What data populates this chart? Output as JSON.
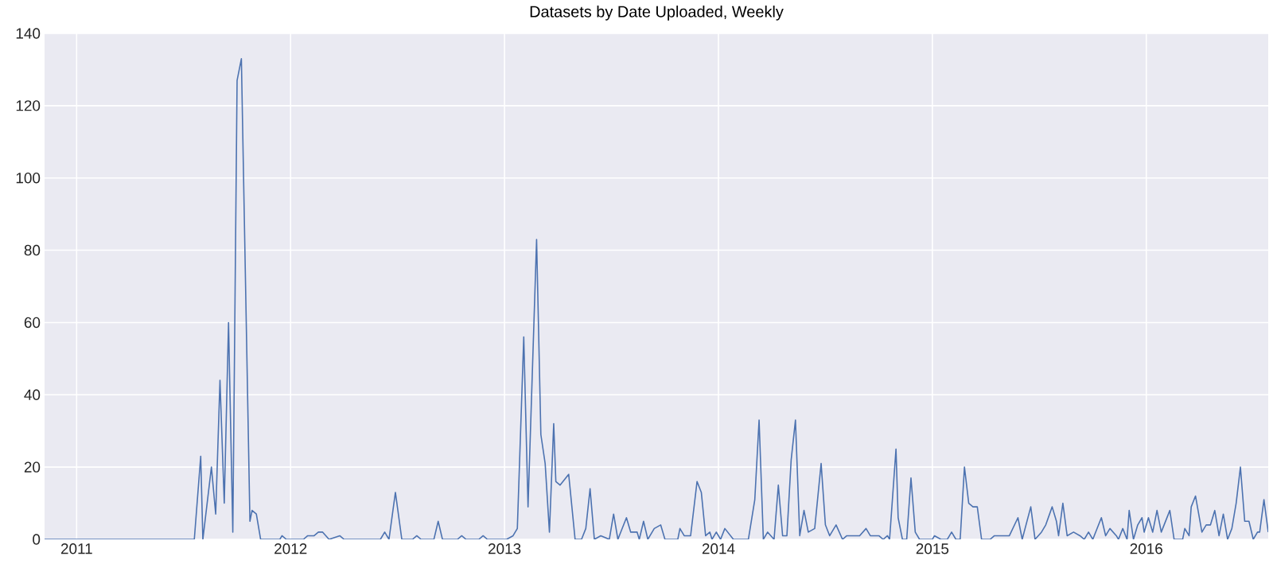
{
  "chart_data": {
    "type": "line",
    "title": "Datasets by Date Uploaded, Weekly",
    "color": "#4c72b0",
    "grid": true,
    "xlim": [
      2010.85,
      2016.57
    ],
    "ylim": [
      0,
      140
    ],
    "xticks": [
      2011,
      2012,
      2013,
      2014,
      2015,
      2016
    ],
    "yticks": [
      0,
      20,
      40,
      60,
      80,
      100,
      120,
      140
    ],
    "x": [
      2010.85,
      2011.55,
      2011.58,
      2011.59,
      2011.63,
      2011.65,
      2011.67,
      2011.69,
      2011.71,
      2011.73,
      2011.75,
      2011.77,
      2011.81,
      2011.82,
      2011.84,
      2011.86,
      2011.95,
      2011.96,
      2011.98,
      2012.06,
      2012.08,
      2012.11,
      2012.13,
      2012.15,
      2012.18,
      2012.23,
      2012.25,
      2012.42,
      2012.44,
      2012.46,
      2012.49,
      2012.52,
      2012.57,
      2012.59,
      2012.61,
      2012.67,
      2012.69,
      2012.71,
      2012.78,
      2012.8,
      2012.82,
      2012.88,
      2012.9,
      2012.92,
      2013.01,
      2013.04,
      2013.06,
      2013.09,
      2013.11,
      2013.15,
      2013.17,
      2013.19,
      2013.21,
      2013.23,
      2013.24,
      2013.26,
      2013.3,
      2013.33,
      2013.36,
      2013.38,
      2013.4,
      2013.42,
      2013.45,
      2013.49,
      2013.51,
      2013.53,
      2013.57,
      2013.59,
      2013.62,
      2013.63,
      2013.65,
      2013.67,
      2013.7,
      2013.73,
      2013.75,
      2013.81,
      2013.82,
      2013.84,
      2013.87,
      2013.9,
      2013.92,
      2013.94,
      2013.96,
      2013.97,
      2013.99,
      2014.01,
      2014.03,
      2014.07,
      2014.14,
      2014.17,
      2014.19,
      2014.21,
      2014.23,
      2014.26,
      2014.28,
      2014.3,
      2014.32,
      2014.34,
      2014.36,
      2014.38,
      2014.4,
      2014.42,
      2014.45,
      2014.48,
      2014.5,
      2014.52,
      2014.55,
      2014.58,
      2014.6,
      2014.66,
      2014.69,
      2014.71,
      2014.75,
      2014.77,
      2014.79,
      2014.8,
      2014.83,
      2014.84,
      2014.86,
      2014.88,
      2014.9,
      2014.92,
      2014.94,
      2015.0,
      2015.01,
      2015.04,
      2015.07,
      2015.09,
      2015.11,
      2015.13,
      2015.15,
      2015.17,
      2015.19,
      2015.21,
      2015.23,
      2015.27,
      2015.29,
      2015.36,
      2015.4,
      2015.42,
      2015.46,
      2015.48,
      2015.51,
      2015.53,
      2015.56,
      2015.58,
      2015.59,
      2015.61,
      2015.63,
      2015.66,
      2015.69,
      2015.71,
      2015.73,
      2015.75,
      2015.79,
      2015.81,
      2015.83,
      2015.86,
      2015.87,
      2015.89,
      2015.91,
      2015.92,
      2015.94,
      2015.96,
      2015.98,
      2015.99,
      2016.01,
      2016.03,
      2016.05,
      2016.07,
      2016.11,
      2016.13,
      2016.17,
      2016.18,
      2016.2,
      2016.21,
      2016.23,
      2016.26,
      2016.28,
      2016.3,
      2016.32,
      2016.34,
      2016.36,
      2016.38,
      2016.4,
      2016.42,
      2016.44,
      2016.46,
      2016.48,
      2016.5,
      2016.52,
      2016.53,
      2016.55,
      2016.57
    ],
    "values": [
      0,
      0,
      23,
      0,
      20,
      7,
      44,
      10,
      60,
      2,
      127,
      133,
      5,
      8,
      7,
      0,
      0,
      1,
      0,
      0,
      1,
      1,
      2,
      2,
      0,
      1,
      0,
      0,
      2,
      0,
      13,
      0,
      0,
      1,
      0,
      0,
      5,
      0,
      0,
      1,
      0,
      0,
      1,
      0,
      0,
      1,
      3,
      56,
      9,
      83,
      29,
      21,
      2,
      32,
      16,
      15,
      18,
      0,
      0,
      3,
      14,
      0,
      1,
      0,
      7,
      0,
      6,
      2,
      2,
      0,
      5,
      0,
      3,
      4,
      0,
      0,
      3,
      1,
      1,
      16,
      13,
      1,
      2,
      0,
      2,
      0,
      3,
      0,
      0,
      11,
      33,
      0,
      2,
      0,
      15,
      1,
      1,
      22,
      33,
      1,
      8,
      2,
      3,
      21,
      4,
      1,
      4,
      0,
      1,
      1,
      3,
      1,
      1,
      0,
      1,
      0,
      25,
      6,
      0,
      0,
      17,
      2,
      0,
      0,
      1,
      0,
      0,
      2,
      0,
      0,
      20,
      10,
      9,
      9,
      0,
      0,
      1,
      1,
      6,
      0,
      9,
      0,
      2,
      4,
      9,
      5,
      1,
      10,
      1,
      2,
      1,
      0,
      2,
      0,
      6,
      1,
      3,
      1,
      0,
      3,
      0,
      8,
      0,
      4,
      6,
      2,
      6,
      2,
      8,
      2,
      8,
      0,
      0,
      3,
      1,
      9,
      12,
      2,
      4,
      4,
      8,
      1,
      7,
      0,
      3,
      10,
      20,
      5,
      5,
      0,
      2,
      2,
      11,
      2
    ]
  }
}
